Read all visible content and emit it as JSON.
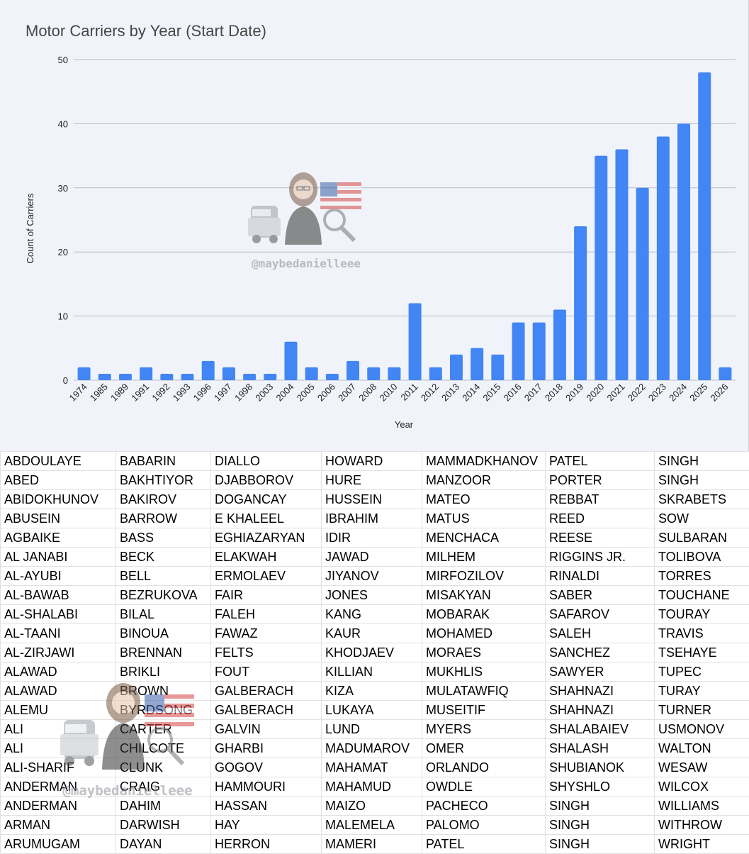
{
  "chart_data": {
    "type": "bar",
    "title": "Motor Carriers by Year (Start Date)",
    "xlabel": "Year",
    "ylabel": "Count of Carriers",
    "ylim": [
      0,
      50
    ],
    "yticks": [
      0,
      10,
      20,
      30,
      40,
      50
    ],
    "grid": true,
    "categories": [
      "1974",
      "1985",
      "1989",
      "1991",
      "1992",
      "1993",
      "1996",
      "1997",
      "1998",
      "2003",
      "2004",
      "2005",
      "2006",
      "2007",
      "2008",
      "2010",
      "2011",
      "2012",
      "2013",
      "2014",
      "2015",
      "2016",
      "2017",
      "2018",
      "2019",
      "2020",
      "2021",
      "2022",
      "2023",
      "2024",
      "2025",
      "2026"
    ],
    "values": [
      2,
      1,
      1,
      2,
      1,
      1,
      3,
      2,
      1,
      1,
      6,
      2,
      1,
      3,
      2,
      2,
      12,
      2,
      4,
      5,
      4,
      9,
      9,
      11,
      24,
      35,
      36,
      30,
      38,
      40,
      48,
      2
    ],
    "bar_color": "#4285f4"
  },
  "watermark": {
    "handle": "@maybedanielleee"
  },
  "names_table": {
    "rows": [
      [
        "ABDOULAYE",
        "BABARIN",
        "DIALLO",
        "HOWARD",
        "MAMMADKHANOV",
        "PATEL",
        "SINGH"
      ],
      [
        "ABED",
        "BAKHTIYOR",
        "DJABBOROV",
        "HURE",
        "MANZOOR",
        "PORTER",
        "SINGH"
      ],
      [
        "ABIDOKHUNOV",
        "BAKIROV",
        "DOGANCAY",
        "HUSSEIN",
        "MATEO",
        "REBBAT",
        "SKRABETS"
      ],
      [
        "ABUSEIN",
        "BARROW",
        "E KHALEEL",
        "IBRAHIM",
        "MATUS",
        "REED",
        "SOW"
      ],
      [
        "AGBAIKE",
        "BASS",
        "EGHIAZARYAN",
        "IDIR",
        "MENCHACA",
        "REESE",
        "SULBARAN"
      ],
      [
        "AL JANABI",
        "BECK",
        "ELAKWAH",
        "JAWAD",
        "MILHEM",
        "RIGGINS JR.",
        "TOLIBOVA"
      ],
      [
        "AL-AYUBI",
        "BELL",
        "ERMOLAEV",
        "JIYANOV",
        "MIRFOZILOV",
        "RINALDI",
        "TORRES"
      ],
      [
        "AL-BAWAB",
        "BEZRUKOVA",
        "FAIR",
        "JONES",
        "MISAKYAN",
        "SABER",
        "TOUCHANE"
      ],
      [
        "AL-SHALABI",
        "BILAL",
        "FALEH",
        "KANG",
        "MOBARAK",
        "SAFAROV",
        "TOURAY"
      ],
      [
        "AL-TAANI",
        "BINOUA",
        "FAWAZ",
        "KAUR",
        "MOHAMED",
        "SALEH",
        "TRAVIS"
      ],
      [
        "AL-ZIRJAWI",
        "BRENNAN",
        "FELTS",
        "KHODJAEV",
        "MORAES",
        "SANCHEZ",
        "TSEHAYE"
      ],
      [
        "ALAWAD",
        "BRIKLI",
        "FOUT",
        "KILLIAN",
        "MUKHLIS",
        "SAWYER",
        "TUPEC"
      ],
      [
        "ALAWAD",
        "BROWN",
        "GALBERACH",
        "KIZA",
        "MULATAWFIQ",
        "SHAHNAZI",
        "TURAY"
      ],
      [
        "ALEMU",
        "BYRDSONG",
        "GALBERACH",
        "LUKAYA",
        "MUSEITIF",
        "SHAHNAZI",
        "TURNER"
      ],
      [
        "ALI",
        "CARTER",
        "GALVIN",
        "LUND",
        "MYERS",
        "SHALABAIEV",
        "USMONOV"
      ],
      [
        "ALI",
        "CHILCOTE",
        "GHARBI",
        "MADUMAROV",
        "OMER",
        "SHALASH",
        "WALTON"
      ],
      [
        "ALI-SHARIF",
        "CLUNK",
        "GOGOV",
        "MAHAMAT",
        "ORLANDO",
        "SHUBIANOK",
        "WESAW"
      ],
      [
        "ANDERMAN",
        "CRAIG",
        "HAMMOURI",
        "MAHAMUD",
        "OWDLE",
        "SHYSHLO",
        "WILCOX"
      ],
      [
        "ANDERMAN",
        "DAHIM",
        "HASSAN",
        "MAIZO",
        "PACHECO",
        "SINGH",
        "WILLIAMS"
      ],
      [
        "ARMAN",
        "DARWISH",
        "HAY",
        "MALEMELA",
        "PALOMO",
        "SINGH",
        "WITHROW"
      ],
      [
        "ARUMUGAM",
        "DAYAN",
        "HERRON",
        "MAMERI",
        "PATEL",
        "SINGH",
        "WRIGHT"
      ]
    ]
  }
}
